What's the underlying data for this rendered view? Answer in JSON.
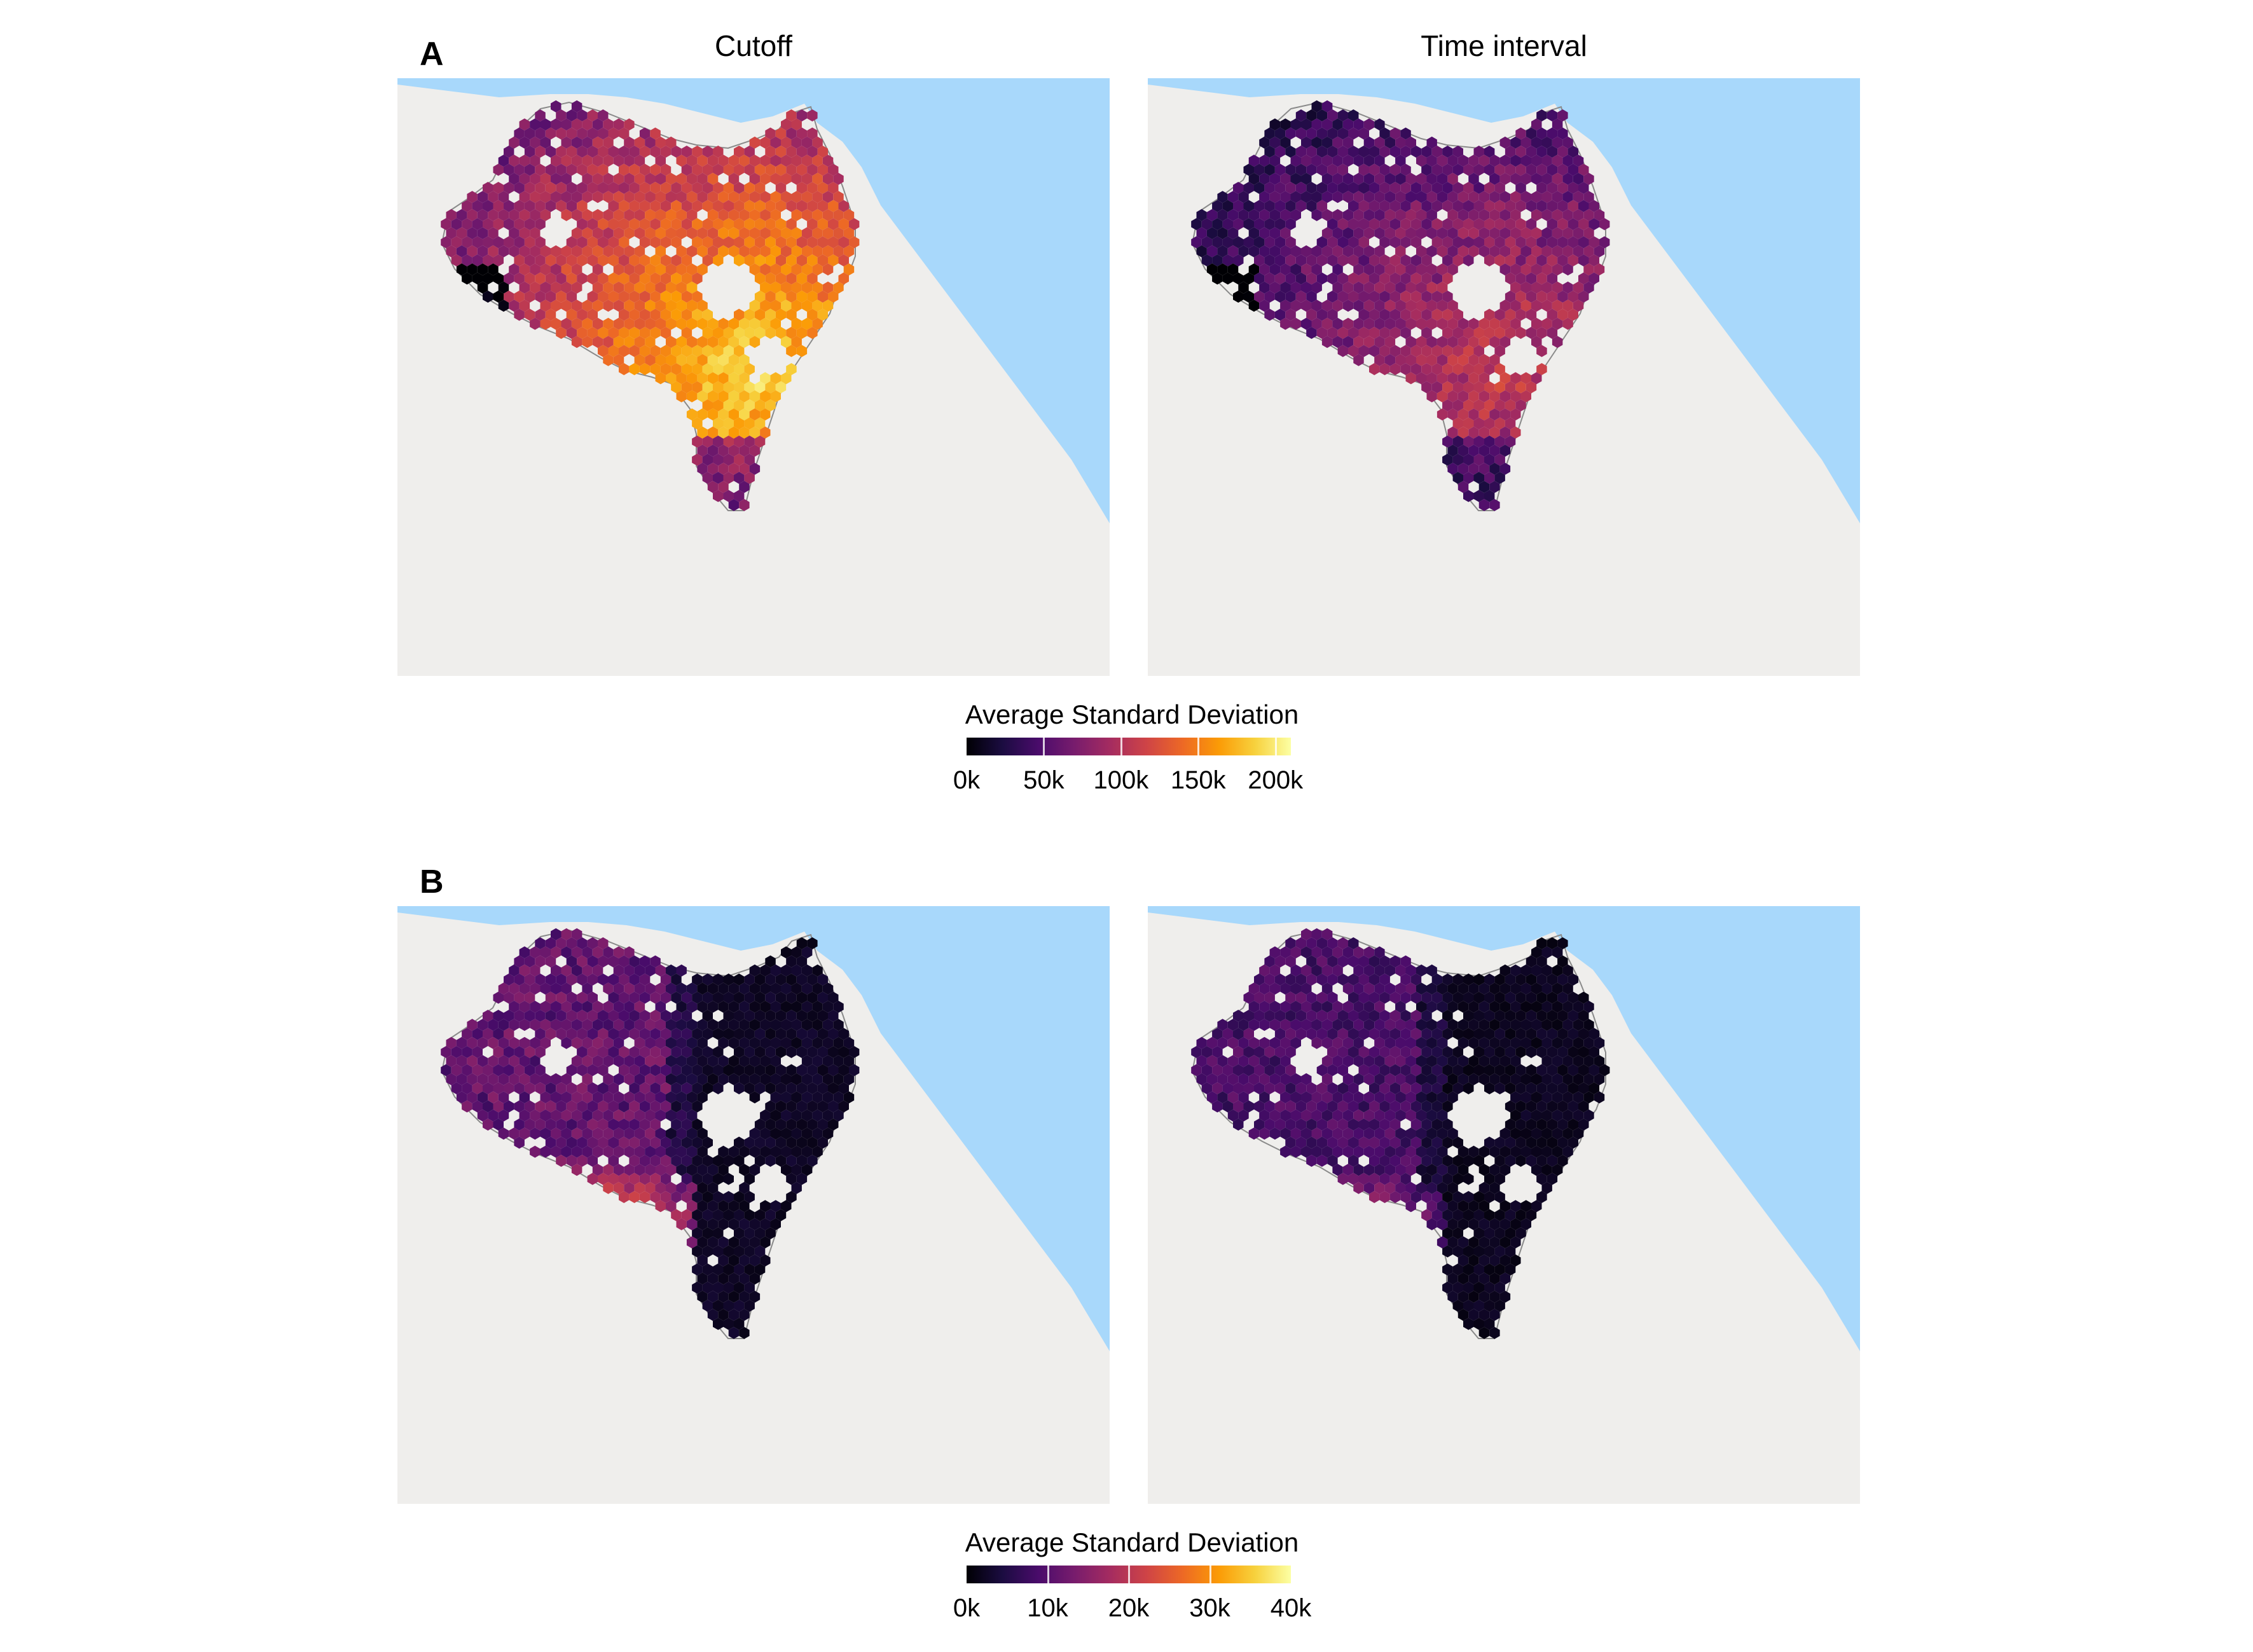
{
  "panels": [
    {
      "letter": "A",
      "columns": [
        "Cutoff",
        "Time interval"
      ],
      "legend": {
        "title": "Average Standard Deviation",
        "ticks": [
          "0k",
          "50k",
          "100k",
          "150k",
          "200k"
        ],
        "tick_values": [
          0,
          50,
          100,
          150,
          200
        ],
        "max": 210
      }
    },
    {
      "letter": "B",
      "columns": [],
      "legend": {
        "title": "Average Standard Deviation",
        "ticks": [
          "0k",
          "10k",
          "20k",
          "30k",
          "40k"
        ],
        "tick_values": [
          0,
          10,
          20,
          30,
          40
        ],
        "max": 40
      }
    }
  ],
  "colors": {
    "water": "#a8d8fb",
    "land": "#efeeec",
    "border": "#8a8a8a",
    "scale": [
      "#000004",
      "#1b0c41",
      "#4a0c6b",
      "#781c6d",
      "#a52c60",
      "#cf4446",
      "#ed6925",
      "#fb9b06",
      "#f7d13d",
      "#fcffa4"
    ]
  }
}
